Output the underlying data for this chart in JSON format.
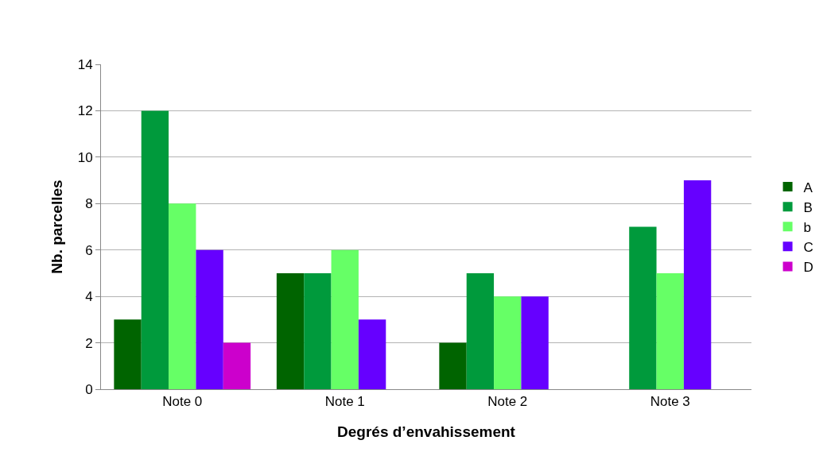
{
  "chart_data": {
    "type": "bar",
    "xlabel": "Degrés d’envahissement",
    "ylabel": "Nb. parcelles",
    "categories": [
      "Note 0",
      "Note 1",
      "Note 2",
      "Note 3"
    ],
    "series": [
      {
        "name": "A",
        "color": "#006400",
        "values": [
          3,
          5,
          2,
          0
        ]
      },
      {
        "name": "B",
        "color": "#009a3c",
        "values": [
          12,
          5,
          5,
          7
        ]
      },
      {
        "name": "b",
        "color": "#66ff66",
        "values": [
          8,
          6,
          4,
          5
        ]
      },
      {
        "name": "C",
        "color": "#6600ff",
        "values": [
          6,
          3,
          4,
          9
        ]
      },
      {
        "name": "D",
        "color": "#cc00cc",
        "values": [
          2,
          0,
          0,
          0
        ]
      }
    ],
    "ylim": [
      0,
      14
    ],
    "yticks": [
      0,
      2,
      4,
      6,
      8,
      10,
      12,
      14
    ],
    "grid": "y",
    "legend": "right"
  }
}
